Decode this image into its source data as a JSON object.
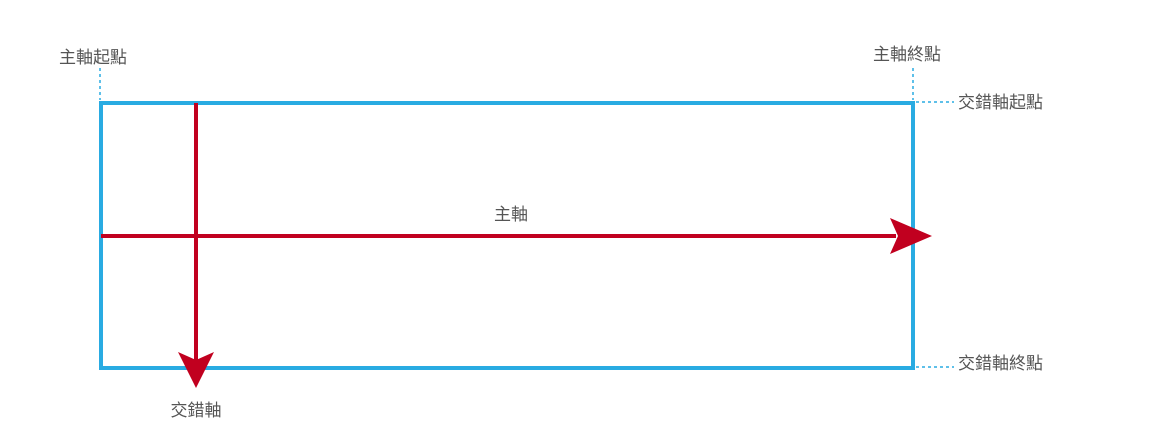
{
  "labels": {
    "main_start": "主軸起點",
    "main_end": "主軸終點",
    "cross_start": "交錯軸起點",
    "cross_end": "交錯軸終點",
    "main_axis": "主軸",
    "cross_axis": "交錯軸"
  },
  "colors": {
    "container_border": "#29abe2",
    "axis_arrow": "#c1001f",
    "label_text": "#555555",
    "guide_line": "#29abe2"
  }
}
